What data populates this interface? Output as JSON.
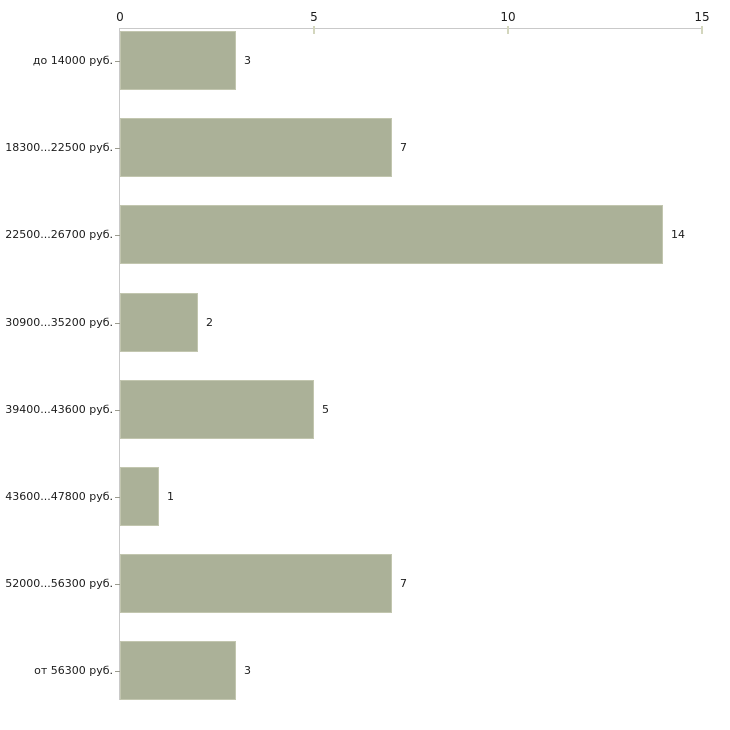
{
  "chart_data": {
    "type": "bar",
    "orientation": "horizontal",
    "title": "",
    "xlabel": "",
    "ylabel": "",
    "categories": [
      "до 14000 руб.",
      "18300...22500 руб.",
      "22500...26700 руб.",
      "30900...35200 руб.",
      "39400...43600 руб.",
      "43600...47800 руб.",
      "52000...56300 руб.",
      "от 56300 руб."
    ],
    "values": [
      3,
      7,
      14,
      2,
      5,
      1,
      7,
      3
    ],
    "value_labels": [
      "3",
      "7",
      "14",
      "2",
      "5",
      "1",
      "7",
      "3"
    ],
    "xlim": [
      0,
      15
    ],
    "x_ticks": [
      0,
      5,
      10,
      15
    ],
    "x_tick_labels": [
      "0",
      "5",
      "10",
      "15"
    ],
    "grid": false,
    "legend": "none",
    "colors": {
      "bar_fill": "#abb198",
      "bar_border": "#c2c6af",
      "axis_line": "#c9c9c9",
      "x_tick_mark": "#d3d6bd",
      "y_tick_mark": "#9b9b8f",
      "text": "#1c1c1c",
      "background": "#ffffff"
    }
  }
}
